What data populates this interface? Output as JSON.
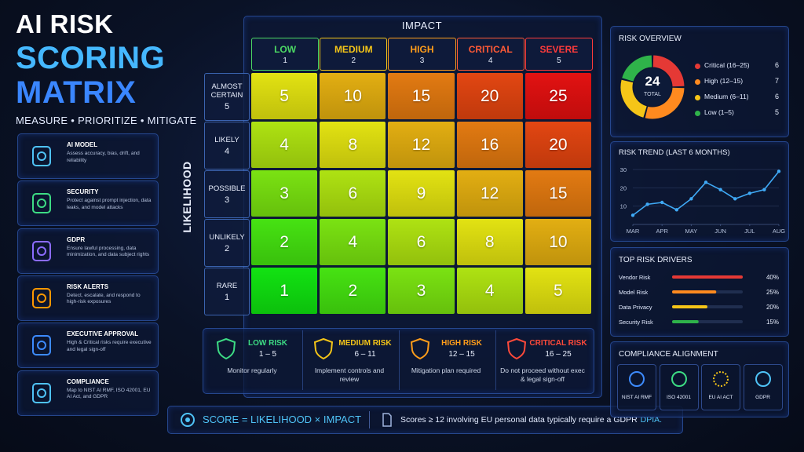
{
  "header": {
    "title_lines": [
      "AI RISK",
      "SCORING",
      "MATRIX"
    ],
    "tagline": "MEASURE • PRIORITIZE • MITIGATE"
  },
  "sidebar": [
    {
      "title": "AI MODEL",
      "text": "Assess accuracy, bias, drift, and reliability"
    },
    {
      "title": "SECURITY",
      "text": "Protect against prompt injection, data leaks, and model attacks"
    },
    {
      "title": "GDPR",
      "text": "Ensure lawful processing, data minimization, and data subject rights"
    },
    {
      "title": "RISK ALERTS",
      "text": "Detect, escalate, and respond to high-risk exposures"
    },
    {
      "title": "EXECUTIVE APPROVAL",
      "text": "High & Critical risks require executive and legal sign-off"
    },
    {
      "title": "COMPLIANCE",
      "text": "Map to NIST AI RMF, ISO 42001, EU AI Act, and GDPR"
    }
  ],
  "matrix": {
    "impact_label": "IMPACT",
    "likelihood_label": "LIKELIHOOD",
    "columns": [
      {
        "name": "LOW",
        "level": 1
      },
      {
        "name": "MEDIUM",
        "level": 2
      },
      {
        "name": "HIGH",
        "level": 3
      },
      {
        "name": "CRITICAL",
        "level": 4
      },
      {
        "name": "SEVERE",
        "level": 5
      }
    ],
    "rows": [
      {
        "name": "ALMOST CERTAIN",
        "level": 5
      },
      {
        "name": "LIKELY",
        "level": 4
      },
      {
        "name": "POSSIBLE",
        "level": 3
      },
      {
        "name": "UNLIKELY",
        "level": 2
      },
      {
        "name": "RARE",
        "level": 1
      }
    ],
    "scores": [
      [
        5,
        10,
        15,
        20,
        25
      ],
      [
        4,
        8,
        12,
        16,
        20
      ],
      [
        3,
        6,
        9,
        12,
        15
      ],
      [
        2,
        4,
        6,
        8,
        10
      ],
      [
        1,
        2,
        3,
        4,
        5
      ]
    ]
  },
  "legend": [
    {
      "title": "LOW RISK",
      "range": "1 – 5",
      "action": "Monitor regularly"
    },
    {
      "title": "MEDIUM RISK",
      "range": "6 – 11",
      "action": "Implement controls and review"
    },
    {
      "title": "HIGH RISK",
      "range": "12 – 15",
      "action": "Mitigation plan required"
    },
    {
      "title": "CRITICAL RISK",
      "range": "16 – 25",
      "action": "Do not proceed without exec & legal sign-off"
    }
  ],
  "footer": {
    "formula": "SCORE = LIKELIHOOD × IMPACT",
    "note": "Scores ≥ 12 involving EU personal data typically require a GDPR",
    "note_emphasis": "DPIA."
  },
  "compliance": {
    "title": "COMPLIANCE ALIGNMENT",
    "items": [
      "NIST AI RMF",
      "ISO 42001",
      "EU AI ACT",
      "GDPR"
    ]
  },
  "chart_data": [
    {
      "type": "pie",
      "title": "RISK OVERVIEW",
      "center_value": 24,
      "center_label": "TOTAL",
      "categories": [
        "Critical (16–25)",
        "High (12–15)",
        "Medium (6–11)",
        "Low (1–5)"
      ],
      "values": [
        6,
        7,
        6,
        5
      ],
      "colors": [
        "#e53935",
        "#ff8a1f",
        "#f5c518",
        "#2fb34a"
      ]
    },
    {
      "type": "line",
      "title": "RISK TREND (LAST 6 MONTHS)",
      "x": [
        0,
        1,
        2,
        3,
        4,
        5,
        6,
        7,
        8,
        9,
        10
      ],
      "xlim": [
        0,
        10
      ],
      "xticks": [
        {
          "value": 0,
          "label": "MAR"
        },
        {
          "value": 2,
          "label": "APR"
        },
        {
          "value": 4,
          "label": "MAY"
        },
        {
          "value": 6,
          "label": "JUN"
        },
        {
          "value": 8,
          "label": "JUL"
        },
        {
          "value": 10,
          "label": "AUG"
        }
      ],
      "ylim": [
        0,
        30
      ],
      "yticks": [
        10,
        20,
        30
      ],
      "grid": true,
      "series": [
        {
          "color": "#3fa9f5",
          "values": [
            5,
            11,
            12,
            8,
            14,
            23,
            19,
            14,
            17,
            19,
            29
          ]
        }
      ]
    },
    {
      "type": "bar",
      "orientation": "horizontal",
      "title": "TOP RISK DRIVERS",
      "categories": [
        "Vendor Risk",
        "Model Risk",
        "Data Privacy",
        "Security Risk"
      ],
      "values": [
        40,
        25,
        20,
        15
      ],
      "value_labels": [
        "40%",
        "25%",
        "20%",
        "15%"
      ],
      "colors": [
        "#e53935",
        "#ff8a1f",
        "#f5c518",
        "#2fb34a"
      ],
      "xlim": [
        0,
        40
      ]
    }
  ]
}
